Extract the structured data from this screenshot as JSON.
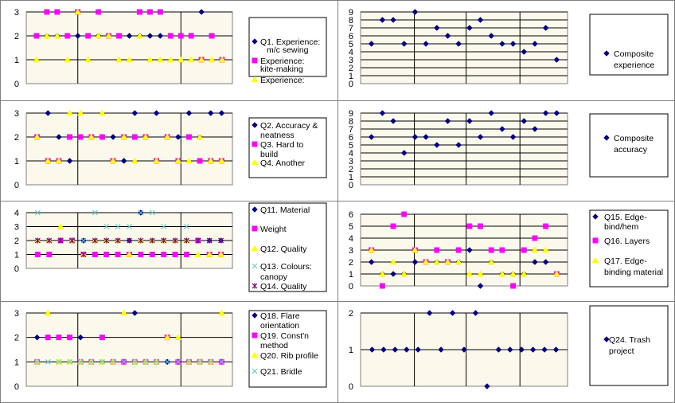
{
  "colors": {
    "plot_bg": "#fbf9ec",
    "grid": "#000000",
    "navy": "#000080",
    "magenta": "#ff00ff",
    "yellow": "#ffff00",
    "cyan": "#66cccc",
    "purple": "#800080"
  },
  "chart_data": [
    {
      "type": "scatter",
      "title": "",
      "ylim": [
        0,
        3
      ],
      "grid": true,
      "legend_position": "right",
      "yticks": [
        "0",
        "1",
        "2",
        "3"
      ],
      "series": [
        {
          "name": "Q1. Experience: m/c sewing",
          "marker": "diamond",
          "color": "#000080",
          "values": [
            2,
            2,
            2,
            2,
            2,
            2,
            2,
            2,
            2,
            2,
            2,
            2,
            2,
            2,
            2,
            2,
            3,
            2,
            1
          ]
        },
        {
          "name": "Experience: kite-making",
          "marker": "square",
          "color": "#ff00ff",
          "values": [
            2,
            3,
            3,
            2,
            3,
            2,
            3,
            2,
            2,
            null,
            3,
            3,
            3,
            2,
            2,
            2,
            1,
            2,
            1
          ]
        },
        {
          "name": "Experience:",
          "marker": "triangle",
          "color": "#ffff00",
          "values": [
            1,
            2,
            2,
            1,
            3,
            1,
            2,
            2,
            1,
            1,
            2,
            1,
            1,
            1,
            1,
            1,
            1,
            1,
            1
          ]
        }
      ]
    },
    {
      "type": "scatter",
      "title": "",
      "ylim": [
        0,
        9
      ],
      "grid": true,
      "legend_position": "right",
      "yticks": [
        "0",
        "1",
        "2",
        "3",
        "4",
        "5",
        "6",
        "7",
        "8",
        "9"
      ],
      "series": [
        {
          "name": "Composite experience",
          "marker": "diamond",
          "color": "#000080",
          "values": [
            5,
            8,
            8,
            5,
            9,
            5,
            7,
            6,
            5,
            7,
            8,
            6,
            5,
            5,
            4,
            5,
            7,
            3
          ]
        }
      ]
    },
    {
      "type": "scatter",
      "title": "",
      "ylim": [
        0,
        3
      ],
      "grid": true,
      "legend_position": "right",
      "yticks": [
        "0",
        "1",
        "2",
        "3"
      ],
      "series": [
        {
          "name": "Q2. Accuracy & neatness",
          "marker": "diamond",
          "color": "#000080",
          "values": [
            2,
            3,
            2,
            1,
            2,
            2,
            2,
            2,
            1,
            3,
            2,
            3,
            2,
            2,
            3,
            2,
            3,
            3
          ]
        },
        {
          "name": "Q3. Hard to build",
          "marker": "square",
          "color": "#ff00ff",
          "values": [
            2,
            1,
            1,
            2,
            2,
            2,
            2,
            1,
            2,
            2,
            2,
            1,
            2,
            1,
            2,
            1,
            1,
            1
          ]
        },
        {
          "name": "Q4. Another",
          "marker": "triangle",
          "color": "#ffff00",
          "values": [
            2,
            1,
            1,
            3,
            3,
            2,
            3,
            1,
            2,
            1,
            2,
            1,
            2,
            1,
            1,
            2,
            1,
            1
          ]
        }
      ]
    },
    {
      "type": "scatter",
      "title": "",
      "ylim": [
        0,
        9
      ],
      "grid": true,
      "legend_position": "right",
      "yticks": [
        "0",
        "1",
        "2",
        "3",
        "4",
        "5",
        "6",
        "7",
        "8",
        "9"
      ],
      "series": [
        {
          "name": "Composite accuracy",
          "marker": "diamond",
          "color": "#000080",
          "values": [
            6,
            9,
            8,
            4,
            6,
            6,
            5,
            8,
            5,
            8,
            6,
            9,
            7,
            6,
            8,
            7,
            9,
            9
          ]
        }
      ]
    },
    {
      "type": "scatter",
      "title": "",
      "ylim": [
        0,
        4
      ],
      "grid": true,
      "legend_position": "right",
      "yticks": [
        "0",
        "1",
        "2",
        "3",
        "4"
      ],
      "series": [
        {
          "name": "Q11. Material",
          "marker": "diamond",
          "color": "#000080",
          "values": [
            2,
            2,
            2,
            2,
            2,
            2,
            2,
            2,
            2,
            4,
            2,
            2,
            2,
            2,
            2,
            2,
            2
          ]
        },
        {
          "name": "Weight",
          "marker": "square",
          "color": "#ff00ff",
          "values": [
            1,
            1,
            2,
            2,
            1,
            1,
            1,
            1,
            1,
            1,
            1,
            1,
            1,
            1,
            2,
            1,
            1
          ]
        },
        {
          "name": "Q12. Quality",
          "marker": "triangle",
          "color": "#ffff00",
          "values": [
            2,
            2,
            3,
            2,
            1,
            2,
            2,
            2,
            1,
            2,
            2,
            2,
            2,
            2,
            1,
            1,
            1
          ]
        },
        {
          "name": "Q13. Colours: canopy",
          "marker": "x",
          "color": "#66cccc",
          "values": [
            4,
            2,
            2,
            2,
            2,
            4,
            3,
            3,
            3,
            4,
            4,
            3,
            2,
            3,
            2,
            2,
            2
          ]
        },
        {
          "name": "Q14. Quality",
          "marker": "star",
          "color": "#800080",
          "values": [
            2,
            2,
            2,
            2,
            1,
            2,
            2,
            2,
            2,
            2,
            2,
            2,
            2,
            2,
            2,
            2,
            2
          ]
        }
      ]
    },
    {
      "type": "scatter",
      "title": "",
      "ylim": [
        0,
        6
      ],
      "grid": true,
      "legend_position": "right",
      "yticks": [
        "0",
        "1",
        "2",
        "3",
        "4",
        "5",
        "6"
      ],
      "series": [
        {
          "name": "Q15. Edge-bind/hem",
          "marker": "diamond",
          "color": "#000080",
          "values": [
            2,
            1,
            1,
            1,
            2,
            2,
            2,
            2,
            2,
            3,
            0,
            2,
            1,
            1,
            1,
            2,
            2,
            1
          ]
        },
        {
          "name": "Q16. Layers",
          "marker": "square",
          "color": "#ff00ff",
          "values": [
            3,
            0,
            5,
            6,
            3,
            2,
            3,
            2,
            3,
            5,
            5,
            3,
            3,
            0,
            3,
            4,
            5,
            1
          ]
        },
        {
          "name": "Q17. Edge-binding material",
          "marker": "triangle",
          "color": "#ffff00",
          "values": [
            3,
            1,
            2,
            1,
            3,
            2,
            2,
            2,
            2,
            1,
            1,
            2,
            1,
            1,
            1,
            3,
            3,
            1
          ]
        }
      ]
    },
    {
      "type": "scatter",
      "title": "",
      "ylim": [
        0,
        3
      ],
      "grid": true,
      "legend_position": "right",
      "yticks": [
        "0",
        "1",
        "2",
        "3"
      ],
      "series": [
        {
          "name": "Q18. Flare orientation",
          "marker": "diamond",
          "color": "#000080",
          "values": [
            2,
            2,
            2,
            2,
            2,
            1,
            1,
            1,
            1,
            3,
            1,
            1,
            1,
            1,
            1,
            1,
            1,
            1
          ]
        },
        {
          "name": "Q19. Const'n method",
          "marker": "square",
          "color": "#ff00ff",
          "values": [
            1,
            2,
            2,
            2,
            1,
            1,
            2,
            1,
            1,
            1,
            1,
            1,
            2,
            1,
            1,
            1,
            1,
            1
          ]
        },
        {
          "name": "Q20. Rib profile",
          "marker": "triangle",
          "color": "#ffff00",
          "values": [
            1,
            3,
            1,
            1,
            1,
            1,
            1,
            1,
            3,
            1,
            1,
            1,
            2,
            2,
            1,
            1,
            1,
            3
          ]
        },
        {
          "name": "Q21. Bridle",
          "marker": "x",
          "color": "#66cccc",
          "values": [
            1,
            1,
            1,
            1,
            1,
            1,
            1,
            1,
            1,
            1,
            1,
            1,
            1,
            1,
            1,
            1,
            1,
            1
          ]
        }
      ]
    },
    {
      "type": "scatter",
      "title": "",
      "ylim": [
        0,
        2
      ],
      "grid": true,
      "legend_position": "right",
      "yticks": [
        "0",
        "1",
        "2"
      ],
      "series": [
        {
          "name": "Q24. Trash project",
          "marker": "diamond",
          "color": "#000080",
          "values": [
            1,
            1,
            1,
            1,
            1,
            2,
            1,
            2,
            1,
            2,
            0,
            1,
            1,
            1,
            1,
            1,
            1
          ]
        }
      ]
    }
  ]
}
